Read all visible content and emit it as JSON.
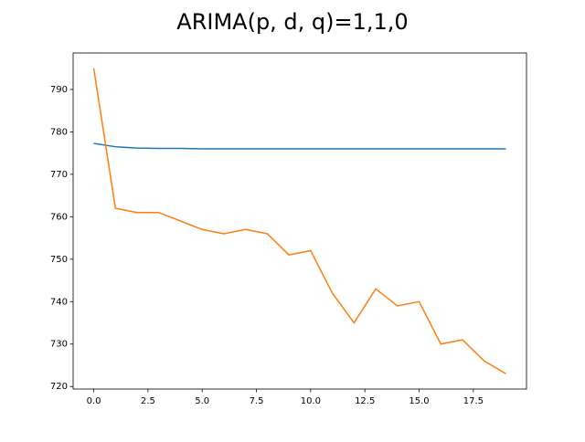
{
  "chart_data": {
    "type": "line",
    "title": "ARIMA(p, d, q)=1,1,0",
    "x": [
      0,
      1,
      2,
      3,
      4,
      5,
      6,
      7,
      8,
      9,
      10,
      11,
      12,
      13,
      14,
      15,
      16,
      17,
      18,
      19
    ],
    "series": [
      {
        "color": "#1f77b4",
        "values": [
          777.3,
          776.5,
          776.2,
          776.1,
          776.1,
          776.0,
          776.0,
          776.0,
          776.0,
          776.0,
          776.0,
          776.0,
          776.0,
          776.0,
          776.0,
          776.0,
          776.0,
          776.0,
          776.0,
          776.0
        ]
      },
      {
        "color": "#ff7f0e",
        "values": [
          795,
          762,
          761,
          761,
          759,
          757,
          756,
          757,
          756,
          751,
          752,
          742,
          735,
          743,
          739,
          740,
          730,
          731,
          726,
          723
        ]
      }
    ],
    "xlim": [
      -0.95,
      19.95
    ],
    "xticks": [
      {
        "value": 0,
        "label": "0.0"
      },
      2.5,
      {
        "value": 5,
        "label": "5.0"
      },
      7.5,
      {
        "value": 10,
        "label": "10.0"
      },
      12.5,
      {
        "value": 15,
        "label": "15.0"
      },
      17.5
    ],
    "ylim": [
      719.4,
      798.6
    ],
    "yticks": [
      720,
      730,
      740,
      750,
      760,
      770,
      780,
      790
    ]
  }
}
